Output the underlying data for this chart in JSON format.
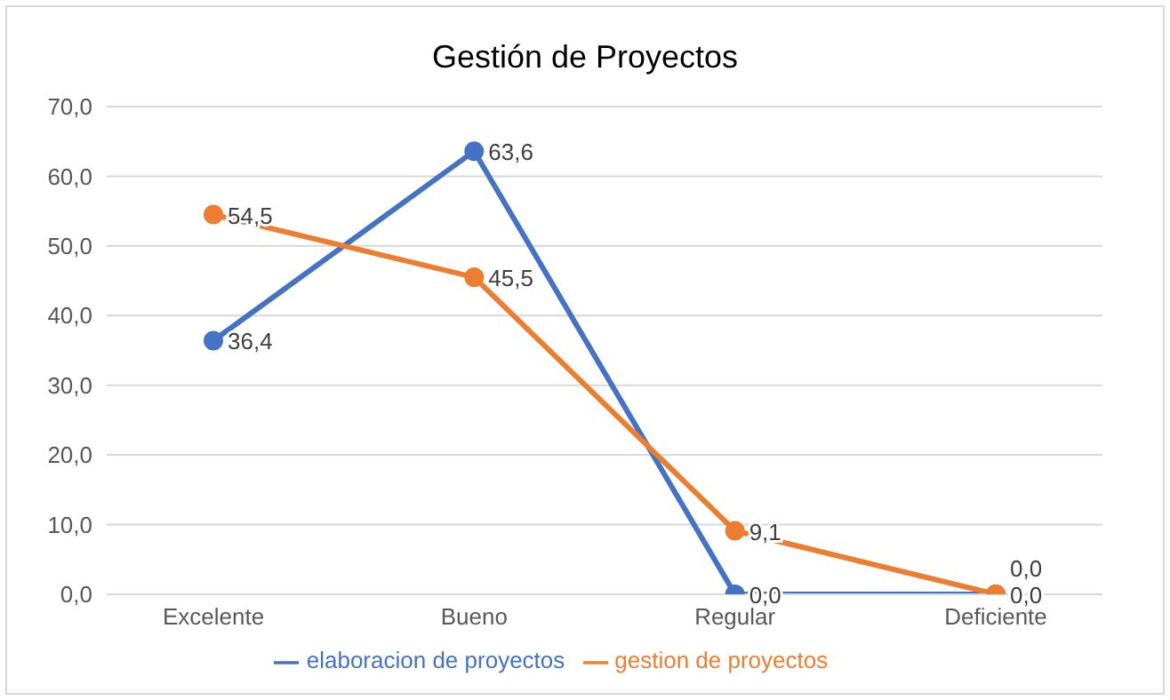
{
  "chart_data": {
    "type": "line",
    "title": "Gestión de Proyectos",
    "categories": [
      "Excelente",
      "Bueno",
      "Regular",
      "Deficiente"
    ],
    "series": [
      {
        "name": "elaboracion de proyectos",
        "color": "#4472c4",
        "values": [
          36.4,
          63.6,
          0.0,
          0.0
        ],
        "value_labels": [
          "36,4",
          "63,6",
          "0,0",
          "0,0"
        ]
      },
      {
        "name": "gestion de proyectos",
        "color": "#ed7d31",
        "values": [
          54.5,
          45.5,
          9.1,
          0.0
        ],
        "value_labels": [
          "54,5",
          "45,5",
          "9,1",
          "0,0"
        ]
      }
    ],
    "ylim": [
      0,
      70
    ],
    "yticks": [
      {
        "value": 0,
        "label": "0,0"
      },
      {
        "value": 10,
        "label": "10,0"
      },
      {
        "value": 20,
        "label": "20,0"
      },
      {
        "value": 30,
        "label": "30,0"
      },
      {
        "value": 40,
        "label": "40,0"
      },
      {
        "value": 50,
        "label": "50,0"
      },
      {
        "value": 60,
        "label": "60,0"
      },
      {
        "value": 70,
        "label": "70,0"
      }
    ],
    "grid": "y",
    "legend": "bottom",
    "marker": "circle",
    "line_style": "solid"
  }
}
